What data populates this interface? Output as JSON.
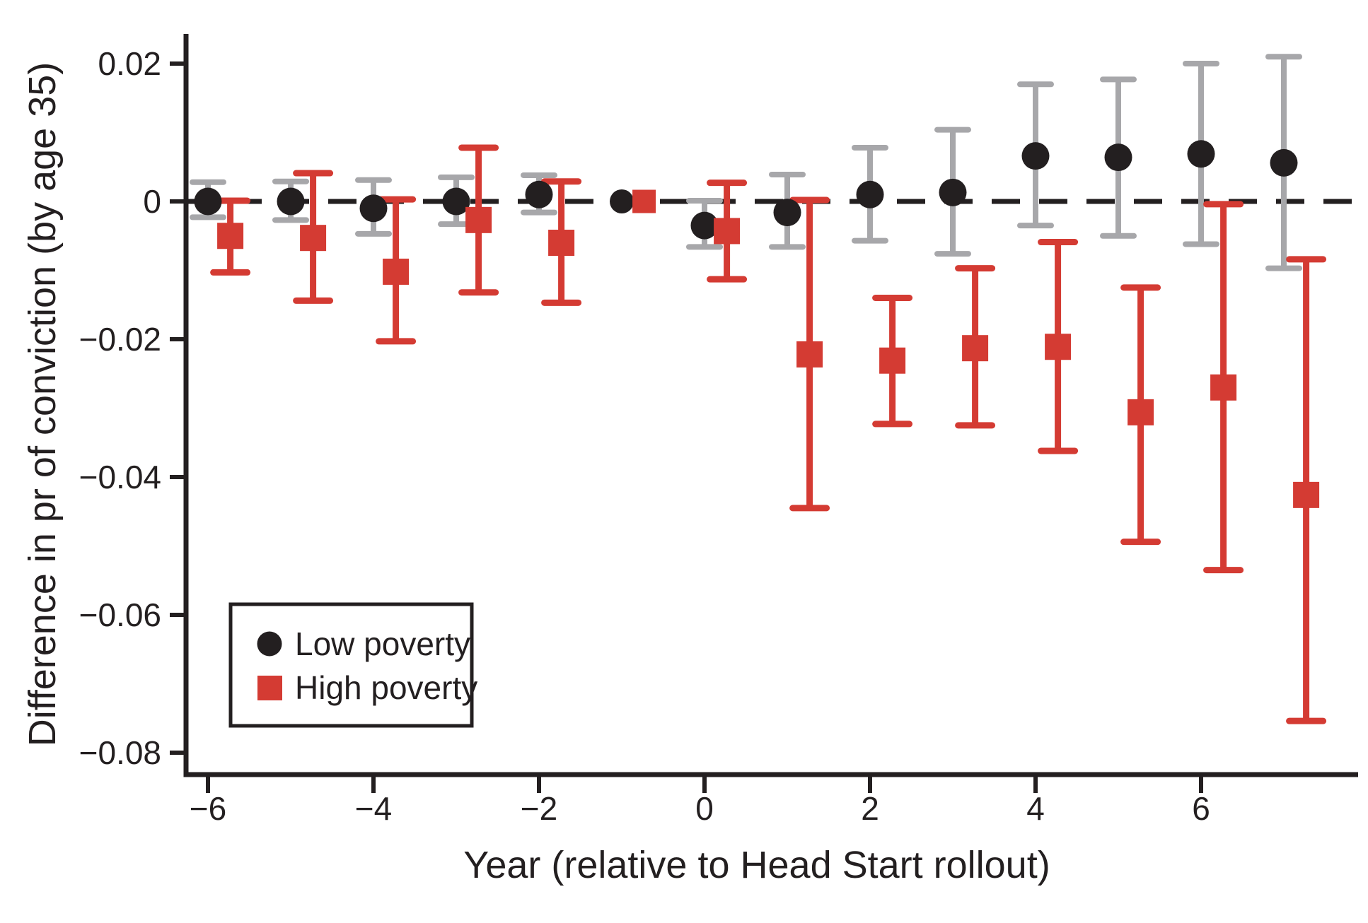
{
  "figure": {
    "background": "#ffffff",
    "ink_color": "#231f20",
    "gray_ci_color": "#a7a7aa",
    "red_color": "#d43b33",
    "y_axis": {
      "label": "Difference in pr of conviction (by age 35)",
      "tick_values": [
        0.02,
        0,
        -0.02,
        -0.04,
        -0.06,
        -0.08
      ],
      "tick_labels": [
        "0.02",
        "0",
        "−0.02",
        "−0.04",
        "−0.06",
        "−0.08"
      ]
    },
    "x_axis": {
      "label": "Year (relative to Head Start rollout)",
      "tick_values": [
        -6,
        -4,
        -2,
        0,
        2,
        4,
        6
      ],
      "tick_labels": [
        "−6",
        "−4",
        "−2",
        "0",
        "2",
        "4",
        "6"
      ]
    },
    "legend": {
      "items": [
        {
          "label": "Low poverty",
          "marker": "circle",
          "color": "#231f20"
        },
        {
          "label": "High poverty",
          "marker": "square",
          "color": "#d43b33"
        }
      ]
    }
  },
  "chart_data": {
    "type": "scatter",
    "subtype": "event-study errorbar",
    "title": "",
    "xlabel": "Year (relative to Head Start rollout)",
    "ylabel": "Difference in pr of conviction (by age 35)",
    "x": [
      -6,
      -5,
      -4,
      -3,
      -2,
      -1,
      0,
      1,
      2,
      3,
      4,
      5,
      6,
      7
    ],
    "reference_year": -1,
    "zero_line": true,
    "xlim": [
      -6.26,
      7.9
    ],
    "ylim": [
      -0.0832,
      0.0246
    ],
    "legend_position": "lower-left",
    "series": [
      {
        "name": "Low poverty",
        "marker": "circle",
        "marker_color": "#231f20",
        "errorbar_color": "#a7a7aa",
        "x_offset_years": 0,
        "estimates": [
          0.0,
          0.0,
          -0.001,
          0.0,
          0.001,
          0.0,
          -0.0035,
          -0.0016,
          0.001,
          0.0013,
          0.0066,
          0.0064,
          0.0069,
          0.0056
        ],
        "ci_low": [
          -0.0023,
          -0.0027,
          -0.0047,
          -0.0033,
          -0.0016,
          null,
          -0.0066,
          -0.0066,
          -0.0057,
          -0.0076,
          -0.0035,
          -0.005,
          -0.0062,
          -0.0097
        ],
        "ci_high": [
          0.0028,
          0.0029,
          0.0031,
          0.0035,
          0.0038,
          null,
          0.0001,
          0.0039,
          0.0078,
          0.0104,
          0.017,
          0.0177,
          0.02,
          0.021
        ]
      },
      {
        "name": "High poverty",
        "marker": "square",
        "marker_color": "#d43b33",
        "errorbar_color": "#d43b33",
        "x_offset_years": 0.27,
        "estimates": [
          -0.005,
          -0.0053,
          -0.0102,
          -0.0027,
          -0.006,
          0.0,
          -0.0043,
          -0.0222,
          -0.0231,
          -0.0213,
          -0.0211,
          -0.0306,
          -0.027,
          -0.0426
        ],
        "ci_low": [
          -0.0103,
          -0.0144,
          -0.0203,
          -0.0132,
          -0.0147,
          null,
          -0.0113,
          -0.0445,
          -0.0323,
          -0.0325,
          -0.0362,
          -0.0494,
          -0.0535,
          -0.0754
        ],
        "ci_high": [
          0.0001,
          0.0041,
          0.0003,
          0.0078,
          0.0029,
          null,
          0.0027,
          0.0002,
          -0.014,
          -0.0097,
          -0.0059,
          -0.0125,
          -0.0004,
          -0.0084
        ]
      }
    ]
  }
}
